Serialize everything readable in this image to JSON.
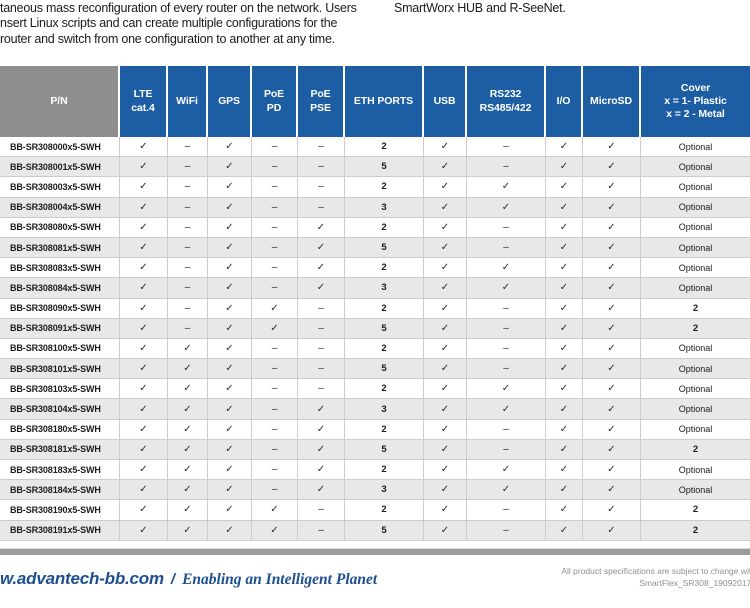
{
  "intro": {
    "left_lines": [
      "taneous mass reconfiguration of every router on the network. Users",
      "nsert Linux scripts and can create multiple configurations for the",
      "router and switch from one configuration to another at any time."
    ],
    "right_line": "SmartWorx HUB and R-SeeNet."
  },
  "table": {
    "columns": [
      {
        "key": "pn",
        "lines": [
          "P/N"
        ]
      },
      {
        "key": "lte",
        "lines": [
          "LTE",
          "cat.4"
        ]
      },
      {
        "key": "wifi",
        "lines": [
          "WiFi"
        ]
      },
      {
        "key": "gps",
        "lines": [
          "GPS"
        ]
      },
      {
        "key": "poe-pd",
        "lines": [
          "PoE",
          "PD"
        ]
      },
      {
        "key": "poe-pse",
        "lines": [
          "PoE",
          "PSE"
        ]
      },
      {
        "key": "eth-ports",
        "lines": [
          "ETH PORTS"
        ]
      },
      {
        "key": "usb",
        "lines": [
          "USB"
        ]
      },
      {
        "key": "rs232",
        "lines": [
          "RS232",
          "RS485/422"
        ]
      },
      {
        "key": "io",
        "lines": [
          "I/O"
        ]
      },
      {
        "key": "microsd",
        "lines": [
          "MicroSD"
        ]
      },
      {
        "key": "cover",
        "lines": [
          "Cover",
          "x = 1- Plastic",
          "x = 2 - Metal"
        ]
      }
    ],
    "rows": [
      {
        "pn": "BB-SR308000x5-SWH",
        "cells": [
          "✓",
          "–",
          "✓",
          "–",
          "–",
          "2",
          "✓",
          "–",
          "✓",
          "✓",
          "Optional"
        ]
      },
      {
        "pn": "BB-SR308001x5-SWH",
        "cells": [
          "✓",
          "–",
          "✓",
          "–",
          "–",
          "5",
          "✓",
          "–",
          "✓",
          "✓",
          "Optional"
        ]
      },
      {
        "pn": "BB-SR308003x5-SWH",
        "cells": [
          "✓",
          "–",
          "✓",
          "–",
          "–",
          "2",
          "✓",
          "✓",
          "✓",
          "✓",
          "Optional"
        ]
      },
      {
        "pn": "BB-SR308004x5-SWH",
        "cells": [
          "✓",
          "–",
          "✓",
          "–",
          "–",
          "3",
          "✓",
          "✓",
          "✓",
          "✓",
          "Optional"
        ]
      },
      {
        "pn": "BB-SR308080x5-SWH",
        "cells": [
          "✓",
          "–",
          "✓",
          "–",
          "✓",
          "2",
          "✓",
          "–",
          "✓",
          "✓",
          "Optional"
        ]
      },
      {
        "pn": "BB-SR308081x5-SWH",
        "cells": [
          "✓",
          "–",
          "✓",
          "–",
          "✓",
          "5",
          "✓",
          "–",
          "✓",
          "✓",
          "Optional"
        ]
      },
      {
        "pn": "BB-SR308083x5-SWH",
        "cells": [
          "✓",
          "–",
          "✓",
          "–",
          "✓",
          "2",
          "✓",
          "✓",
          "✓",
          "✓",
          "Optional"
        ]
      },
      {
        "pn": "BB-SR308084x5-SWH",
        "cells": [
          "✓",
          "–",
          "✓",
          "–",
          "✓",
          "3",
          "✓",
          "✓",
          "✓",
          "✓",
          "Optional"
        ]
      },
      {
        "pn": "BB-SR308090x5-SWH",
        "cells": [
          "✓",
          "–",
          "✓",
          "✓",
          "–",
          "2",
          "✓",
          "–",
          "✓",
          "✓",
          "2"
        ]
      },
      {
        "pn": "BB-SR308091x5-SWH",
        "cells": [
          "✓",
          "–",
          "✓",
          "✓",
          "–",
          "5",
          "✓",
          "–",
          "✓",
          "✓",
          "2"
        ]
      },
      {
        "pn": "BB-SR308100x5-SWH",
        "cells": [
          "✓",
          "✓",
          "✓",
          "–",
          "–",
          "2",
          "✓",
          "–",
          "✓",
          "✓",
          "Optional"
        ]
      },
      {
        "pn": "BB-SR308101x5-SWH",
        "cells": [
          "✓",
          "✓",
          "✓",
          "–",
          "–",
          "5",
          "✓",
          "–",
          "✓",
          "✓",
          "Optional"
        ]
      },
      {
        "pn": "BB-SR308103x5-SWH",
        "cells": [
          "✓",
          "✓",
          "✓",
          "–",
          "–",
          "2",
          "✓",
          "✓",
          "✓",
          "✓",
          "Optional"
        ]
      },
      {
        "pn": "BB-SR308104x5-SWH",
        "cells": [
          "✓",
          "✓",
          "✓",
          "–",
          "✓",
          "3",
          "✓",
          "✓",
          "✓",
          "✓",
          "Optional"
        ]
      },
      {
        "pn": "BB-SR308180x5-SWH",
        "cells": [
          "✓",
          "✓",
          "✓",
          "–",
          "✓",
          "2",
          "✓",
          "–",
          "✓",
          "✓",
          "Optional"
        ]
      },
      {
        "pn": "BB-SR308181x5-SWH",
        "cells": [
          "✓",
          "✓",
          "✓",
          "–",
          "✓",
          "5",
          "✓",
          "–",
          "✓",
          "✓",
          "2"
        ]
      },
      {
        "pn": "BB-SR308183x5-SWH",
        "cells": [
          "✓",
          "✓",
          "✓",
          "–",
          "✓",
          "2",
          "✓",
          "✓",
          "✓",
          "✓",
          "Optional"
        ]
      },
      {
        "pn": "BB-SR308184x5-SWH",
        "cells": [
          "✓",
          "✓",
          "✓",
          "–",
          "✓",
          "3",
          "✓",
          "✓",
          "✓",
          "✓",
          "Optional"
        ]
      },
      {
        "pn": "BB-SR308190x5-SWH",
        "cells": [
          "✓",
          "✓",
          "✓",
          "✓",
          "–",
          "2",
          "✓",
          "–",
          "✓",
          "✓",
          "2"
        ]
      },
      {
        "pn": "BB-SR308191x5-SWH",
        "cells": [
          "✓",
          "✓",
          "✓",
          "✓",
          "–",
          "5",
          "✓",
          "–",
          "✓",
          "✓",
          "2"
        ]
      }
    ]
  },
  "footer": {
    "url": "w.advantech-bb.com",
    "slash": "/",
    "tagline": "Enabling an Intelligent Planet",
    "note_line1": "All product specifications are subject to change with",
    "note_line2": "SmartFlex_SR308_19092017d"
  },
  "colors": {
    "header_blue": "#1d5da4",
    "header_gray": "#8e8e8e",
    "row_stripe": "#e8e8e8",
    "brand_blue": "#1d4f91",
    "divider_gray": "#9c9c9c"
  }
}
